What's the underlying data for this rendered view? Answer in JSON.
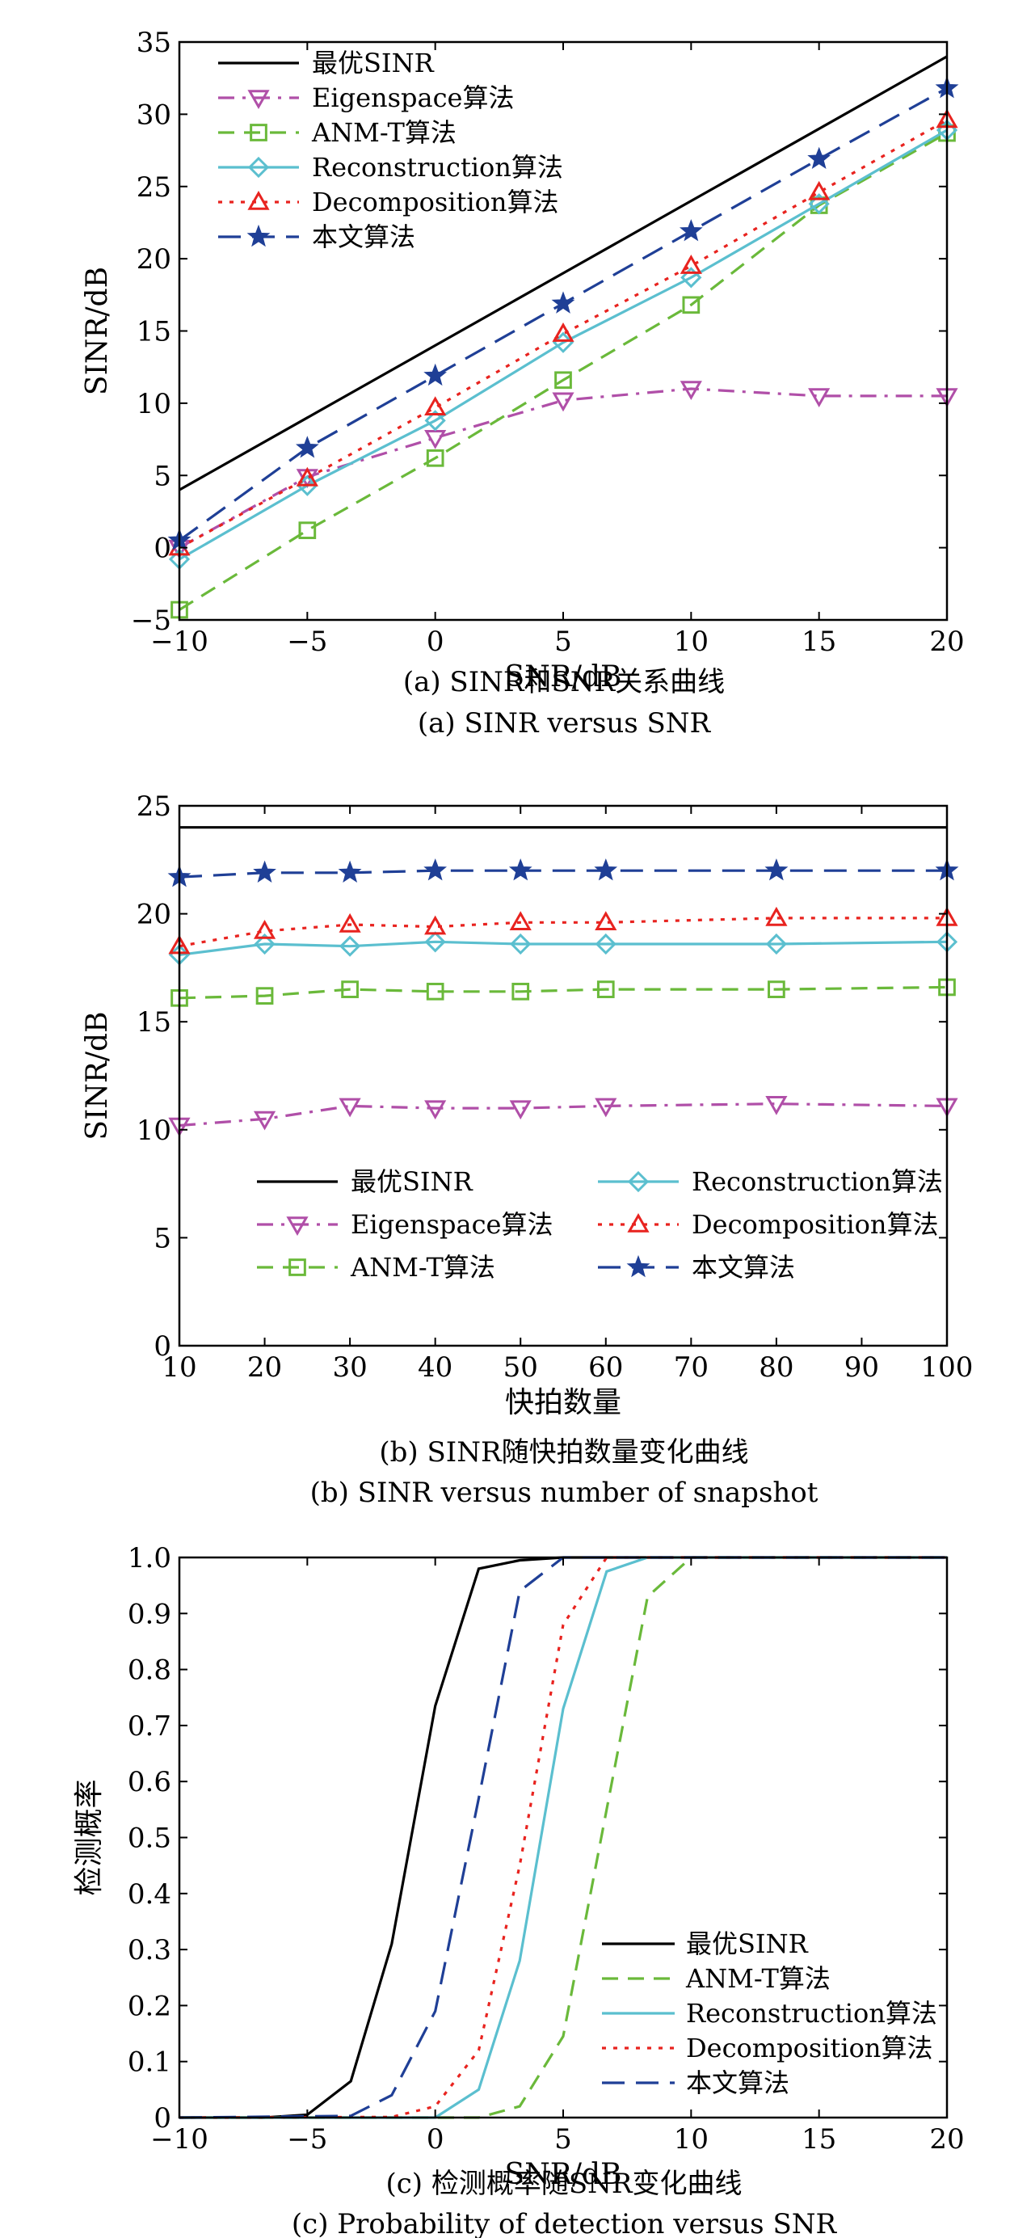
{
  "chart_data": [
    {
      "type": "line",
      "caption_cn": "(a) SINR和SNR关系曲线",
      "caption_en": "(a) SINR versus SNR",
      "xlabel": "SNR/dB",
      "ylabel": "SINR/dB",
      "xlim": [
        -10,
        20
      ],
      "ylim": [
        -5,
        35
      ],
      "xticks": [
        -10,
        -5,
        0,
        5,
        10,
        15,
        20
      ],
      "yticks": [
        -5,
        0,
        5,
        10,
        15,
        20,
        25,
        30,
        35
      ],
      "xtick_labels": [
        "−10",
        "−5",
        "0",
        "5",
        "10",
        "15",
        "20"
      ],
      "ytick_labels": [
        "−5",
        "0",
        "5",
        "10",
        "15",
        "20",
        "25",
        "30",
        "35"
      ],
      "legend_position": "top-left",
      "x": [
        -10,
        -5,
        0,
        5,
        10,
        15,
        20
      ],
      "series": [
        {
          "name": "最优SINR",
          "color": "#000000",
          "dash": "solid",
          "marker": "none",
          "values": [
            4,
            9,
            14,
            19,
            24,
            29,
            34
          ]
        },
        {
          "name": "Eigenspace算法",
          "color": "#b04fa8",
          "dash": "dashdot",
          "marker": "tri-down",
          "values": [
            0,
            4.9,
            7.6,
            10.2,
            11,
            10.5,
            10.5
          ]
        },
        {
          "name": "ANM-T算法",
          "color": "#6ab93a",
          "dash": "dash",
          "marker": "square",
          "values": [
            -4.3,
            1.2,
            6.2,
            11.6,
            16.8,
            23.7,
            28.7
          ]
        },
        {
          "name": "Reconstruction算法",
          "color": "#5bbfcf",
          "dash": "solid",
          "marker": "diamond",
          "values": [
            -0.8,
            4.3,
            8.8,
            14.2,
            18.7,
            23.8,
            28.9
          ]
        },
        {
          "name": "Decomposition算法",
          "color": "#e8231f",
          "dash": "dot",
          "marker": "tri-up",
          "values": [
            0,
            4.8,
            9.7,
            14.8,
            19.5,
            24.6,
            29.6
          ]
        },
        {
          "name": "本文算法",
          "color": "#1f3f96",
          "dash": "longdash",
          "marker": "star",
          "values": [
            0.5,
            6.9,
            11.9,
            16.9,
            21.9,
            26.9,
            31.8
          ]
        }
      ]
    },
    {
      "type": "line",
      "caption_cn": "(b) SINR随快拍数量变化曲线",
      "caption_en": "(b) SINR versus number of snapshot",
      "xlabel": "快拍数量",
      "ylabel": "SINR/dB",
      "xlim": [
        10,
        100
      ],
      "ylim": [
        0,
        25
      ],
      "xticks": [
        10,
        20,
        30,
        40,
        50,
        60,
        70,
        80,
        90,
        100
      ],
      "yticks": [
        0,
        5,
        10,
        15,
        20,
        25
      ],
      "xtick_labels": [
        "10",
        "20",
        "30",
        "40",
        "50",
        "60",
        "70",
        "80",
        "90",
        "100"
      ],
      "ytick_labels": [
        "0",
        "5",
        "10",
        "15",
        "20",
        "25"
      ],
      "legend_position": "bottom",
      "x": [
        10,
        20,
        30,
        40,
        50,
        60,
        80,
        100
      ],
      "series": [
        {
          "name": "最优SINR",
          "color": "#000000",
          "dash": "solid",
          "marker": "none",
          "values": [
            24,
            24,
            24,
            24,
            24,
            24,
            24,
            24
          ]
        },
        {
          "name": "Eigenspace算法",
          "color": "#b04fa8",
          "dash": "dashdot",
          "marker": "tri-down",
          "values": [
            10.2,
            10.5,
            11.1,
            11.0,
            11.0,
            11.1,
            11.2,
            11.1
          ]
        },
        {
          "name": "ANM-T算法",
          "color": "#6ab93a",
          "dash": "dash",
          "marker": "square",
          "values": [
            16.1,
            16.2,
            16.5,
            16.4,
            16.4,
            16.5,
            16.5,
            16.6
          ]
        },
        {
          "name": "Reconstruction算法",
          "color": "#5bbfcf",
          "dash": "solid",
          "marker": "diamond",
          "values": [
            18.1,
            18.6,
            18.5,
            18.7,
            18.6,
            18.6,
            18.6,
            18.7
          ]
        },
        {
          "name": "Decomposition算法",
          "color": "#e8231f",
          "dash": "dot",
          "marker": "tri-up",
          "values": [
            18.5,
            19.2,
            19.5,
            19.4,
            19.6,
            19.6,
            19.8,
            19.8
          ]
        },
        {
          "name": "本文算法",
          "color": "#1f3f96",
          "dash": "longdash",
          "marker": "star",
          "values": [
            21.7,
            21.9,
            21.9,
            22.0,
            22.0,
            22.0,
            22.0,
            22.0
          ]
        }
      ]
    },
    {
      "type": "line",
      "caption_cn": "(c) 检测概率随SNR变化曲线",
      "caption_en": "(c) Probability of detection versus SNR",
      "xlabel": "SNR/dB",
      "ylabel": "检测概率",
      "xlim": [
        -10,
        20
      ],
      "ylim": [
        0,
        1
      ],
      "xticks": [
        -10,
        -5,
        0,
        5,
        10,
        15,
        20
      ],
      "yticks": [
        0,
        0.1,
        0.2,
        0.3,
        0.4,
        0.5,
        0.6,
        0.7,
        0.8,
        0.9,
        1.0
      ],
      "xtick_labels": [
        "−10",
        "−5",
        "0",
        "5",
        "10",
        "15",
        "20"
      ],
      "ytick_labels": [
        "0",
        "0.1",
        "0.2",
        "0.3",
        "0.4",
        "0.5",
        "0.6",
        "0.7",
        "0.8",
        "0.9",
        "1.0"
      ],
      "legend_position": "bottom-right",
      "series": [
        {
          "name": "最优SINR",
          "color": "#000000",
          "dash": "solid",
          "x": [
            -10,
            -6.7,
            -5,
            -3.3,
            -1.7,
            0,
            1.7,
            3.3,
            5,
            20
          ],
          "values": [
            0,
            0,
            0.005,
            0.065,
            0.31,
            0.735,
            0.98,
            0.995,
            1.0,
            1.0
          ]
        },
        {
          "name": "ANM-T算法",
          "color": "#6ab93a",
          "dash": "dash",
          "x": [
            -10,
            0,
            1.7,
            3.3,
            5,
            6.7,
            8.3,
            10,
            20
          ],
          "values": [
            0,
            0,
            0,
            0.02,
            0.145,
            0.55,
            0.93,
            1.0,
            1.0
          ]
        },
        {
          "name": "Reconstruction算法",
          "color": "#5bbfcf",
          "dash": "solid",
          "x": [
            -10,
            0,
            1.7,
            3.3,
            5,
            6.7,
            8.3,
            20
          ],
          "values": [
            0,
            0,
            0.05,
            0.28,
            0.73,
            0.975,
            1.0,
            1.0
          ]
        },
        {
          "name": "Decomposition算法",
          "color": "#e8231f",
          "dash": "dot",
          "x": [
            -10,
            -1.7,
            0,
            1.7,
            3.3,
            5,
            6.7,
            20
          ],
          "values": [
            0,
            0.001,
            0.02,
            0.12,
            0.45,
            0.88,
            1.0,
            1.0
          ]
        },
        {
          "name": "本文算法",
          "color": "#1f3f96",
          "dash": "longdash",
          "x": [
            -10,
            -3.3,
            -1.7,
            0,
            1.7,
            3.3,
            5,
            20
          ],
          "values": [
            0,
            0.003,
            0.04,
            0.19,
            0.57,
            0.94,
            1.0,
            1.0
          ]
        }
      ]
    }
  ]
}
